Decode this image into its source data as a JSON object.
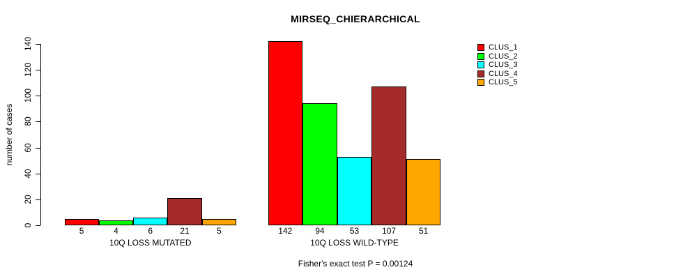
{
  "caption": "Fisher's exact test P = 0.00124",
  "chart_data": {
    "type": "bar",
    "title": "MIRSEQ_CHIERARCHICAL",
    "xlabel": "",
    "ylabel": "number of cases",
    "ylim": [
      0,
      140
    ],
    "yticks": [
      0,
      20,
      40,
      60,
      80,
      100,
      120,
      140
    ],
    "grid": false,
    "legend_position": "right-outside",
    "series_names": [
      "CLUS_1",
      "CLUS_2",
      "CLUS_3",
      "CLUS_4",
      "CLUS_5"
    ],
    "colors": [
      "#FF0000",
      "#00FF00",
      "#00FFFF",
      "#A52A2A",
      "#FFA500"
    ],
    "groups": [
      {
        "label": "10Q LOSS MUTATED",
        "values": [
          5,
          4,
          6,
          21,
          5
        ]
      },
      {
        "label": "10Q LOSS WILD-TYPE",
        "values": [
          142,
          94,
          53,
          107,
          51
        ]
      }
    ],
    "annotation": "Fisher's exact test P = 0.00124"
  }
}
